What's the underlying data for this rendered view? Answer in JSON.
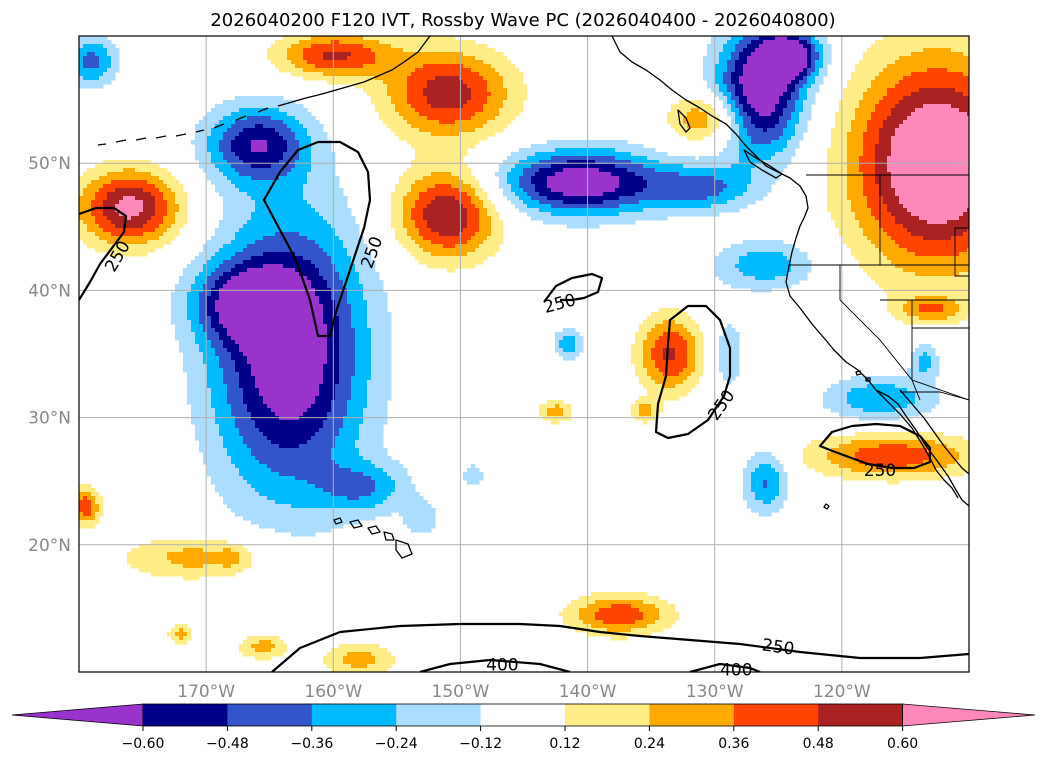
{
  "title": "2026040200 F120 IVT, Rossby Wave PC (2026040400 - 2026040800)",
  "map": {
    "lon_range": [
      -180,
      -110
    ],
    "lat_range": [
      10,
      60
    ],
    "lat_labels": [
      {
        "lat": 50,
        "text": "50°N"
      },
      {
        "lat": 40,
        "text": "40°N"
      },
      {
        "lat": 30,
        "text": "30°N"
      },
      {
        "lat": 20,
        "text": "20°N"
      }
    ],
    "lon_labels": [
      {
        "lon": -170,
        "text": "170°W"
      },
      {
        "lon": -160,
        "text": "160°W"
      },
      {
        "lon": -150,
        "text": "150°W"
      },
      {
        "lon": -140,
        "text": "140°W"
      },
      {
        "lon": -130,
        "text": "130°W"
      },
      {
        "lon": -120,
        "text": "120°W"
      }
    ],
    "ivt_labels": [
      {
        "text": "250",
        "lon": -177.0,
        "lat": 42.7,
        "rot": -60
      },
      {
        "text": "250",
        "lon": -157.0,
        "lat": 43.0,
        "rot": -70
      },
      {
        "text": "250",
        "lon": -142.2,
        "lat": 39.0,
        "rot": -15
      },
      {
        "text": "250",
        "lon": -129.5,
        "lat": 31.0,
        "rot": -55
      },
      {
        "text": "250",
        "lon": -117.0,
        "lat": 25.9,
        "rot": 0
      },
      {
        "text": "250",
        "lon": -125.0,
        "lat": 12.0,
        "rot": 8
      },
      {
        "text": "400",
        "lon": -146.7,
        "lat": 10.6,
        "rot": 0
      },
      {
        "text": "400",
        "lon": -128.3,
        "lat": 10.2,
        "rot": 0
      }
    ]
  },
  "colorbar": {
    "ticks": [
      "−0.60",
      "−0.48",
      "−0.36",
      "−0.24",
      "−0.12",
      "0.12",
      "0.24",
      "0.36",
      "0.48",
      "0.60"
    ],
    "colors": [
      "#9933cc",
      "#000088",
      "#3355cc",
      "#00bbff",
      "#aaddff",
      "#ffffff",
      "#ffee88",
      "#ffaa00",
      "#ff4400",
      "#aa2222",
      "#ff88bb"
    ]
  },
  "chart_data": {
    "type": "heatmap",
    "title": "2026040200 F120 IVT, Rossby Wave PC (2026040400 - 2026040800)",
    "levels": [
      -0.6,
      -0.48,
      -0.36,
      -0.24,
      -0.12,
      0.12,
      0.24,
      0.36,
      0.48,
      0.6
    ],
    "features": [
      {
        "lon": -163.5,
        "lat": 35,
        "sx": 6.0,
        "sy": 11.0,
        "a": -0.75
      },
      {
        "lon": -166,
        "lat": 51.5,
        "sx": 4.0,
        "sy": 3.0,
        "a": -0.55
      },
      {
        "lon": -167,
        "lat": 39,
        "sx": 4.0,
        "sy": 3.0,
        "a": -0.45
      },
      {
        "lon": -157.5,
        "lat": 24.5,
        "sx": 3.5,
        "sy": 2.0,
        "a": -0.3
      },
      {
        "lon": -179,
        "lat": 58,
        "sx": 2.0,
        "sy": 2.0,
        "a": -0.4
      },
      {
        "lon": -140.5,
        "lat": 48.5,
        "sx": 6.5,
        "sy": 2.6,
        "a": -0.72
      },
      {
        "lon": -131,
        "lat": 48,
        "sx": 4.0,
        "sy": 1.8,
        "a": -0.35
      },
      {
        "lon": -126.5,
        "lat": 55.5,
        "sx": 3.5,
        "sy": 5.0,
        "a": -0.75
      },
      {
        "lon": -124,
        "lat": 58.5,
        "sx": 2.5,
        "sy": 2.0,
        "a": -0.6
      },
      {
        "lon": -126,
        "lat": 42,
        "sx": 4.0,
        "sy": 2.0,
        "a": -0.33
      },
      {
        "lon": -129,
        "lat": 35,
        "sx": 1.5,
        "sy": 3.5,
        "a": -0.2
      },
      {
        "lon": -117,
        "lat": 31.5,
        "sx": 4.5,
        "sy": 1.8,
        "a": -0.35
      },
      {
        "lon": -126,
        "lat": 25,
        "sx": 1.8,
        "sy": 2.5,
        "a": -0.38
      },
      {
        "lon": -141.5,
        "lat": 35.8,
        "sx": 1.2,
        "sy": 1.2,
        "a": -0.33
      },
      {
        "lon": -113.5,
        "lat": 34.5,
        "sx": 1.2,
        "sy": 1.5,
        "a": -0.3
      },
      {
        "lon": -153,
        "lat": 22,
        "sx": 1.5,
        "sy": 1.5,
        "a": -0.2
      },
      {
        "lon": -151,
        "lat": 55.5,
        "sx": 5.0,
        "sy": 3.5,
        "a": 0.55
      },
      {
        "lon": -151,
        "lat": 46,
        "sx": 4.0,
        "sy": 3.5,
        "a": 0.62
      },
      {
        "lon": -160,
        "lat": 58.5,
        "sx": 4.5,
        "sy": 1.8,
        "a": 0.5
      },
      {
        "lon": -176,
        "lat": 46.5,
        "sx": 4.0,
        "sy": 3.0,
        "a": 0.65
      },
      {
        "lon": -133.5,
        "lat": 35,
        "sx": 2.5,
        "sy": 3.0,
        "a": 0.5
      },
      {
        "lon": -130.5,
        "lat": 53.5,
        "sx": 3.0,
        "sy": 2.0,
        "a": 0.42
      },
      {
        "lon": -116,
        "lat": 27,
        "sx": 6.5,
        "sy": 1.8,
        "a": 0.45
      },
      {
        "lon": -112.5,
        "lat": 50,
        "sx": 6.5,
        "sy": 8.0,
        "a": 0.85
      },
      {
        "lon": -137.5,
        "lat": 14.5,
        "sx": 4.0,
        "sy": 1.6,
        "a": 0.45
      },
      {
        "lon": -170.5,
        "lat": 19,
        "sx": 6.0,
        "sy": 1.8,
        "a": 0.3
      },
      {
        "lon": -158,
        "lat": 11,
        "sx": 3.0,
        "sy": 1.3,
        "a": 0.3
      },
      {
        "lon": -165.5,
        "lat": 12,
        "sx": 2.0,
        "sy": 1.0,
        "a": 0.3
      },
      {
        "lon": -172,
        "lat": 13,
        "sx": 1.0,
        "sy": 0.8,
        "a": 0.3
      },
      {
        "lon": -142.5,
        "lat": 30.5,
        "sx": 1.4,
        "sy": 0.9,
        "a": 0.3
      },
      {
        "lon": -135.5,
        "lat": 30.5,
        "sx": 1.1,
        "sy": 0.9,
        "a": 0.28
      },
      {
        "lon": -179.5,
        "lat": 23,
        "sx": 1.2,
        "sy": 1.5,
        "a": 0.45
      },
      {
        "lon": -113,
        "lat": 38.5,
        "sx": 2.5,
        "sy": 1.0,
        "a": 0.3
      },
      {
        "lon": -149,
        "lat": 25.5,
        "sx": 1.0,
        "sy": 1.0,
        "a": -0.2
      },
      {
        "lon": -168,
        "lat": 19,
        "sx": 1.0,
        "sy": 1.0,
        "a": 0.1
      }
    ]
  }
}
